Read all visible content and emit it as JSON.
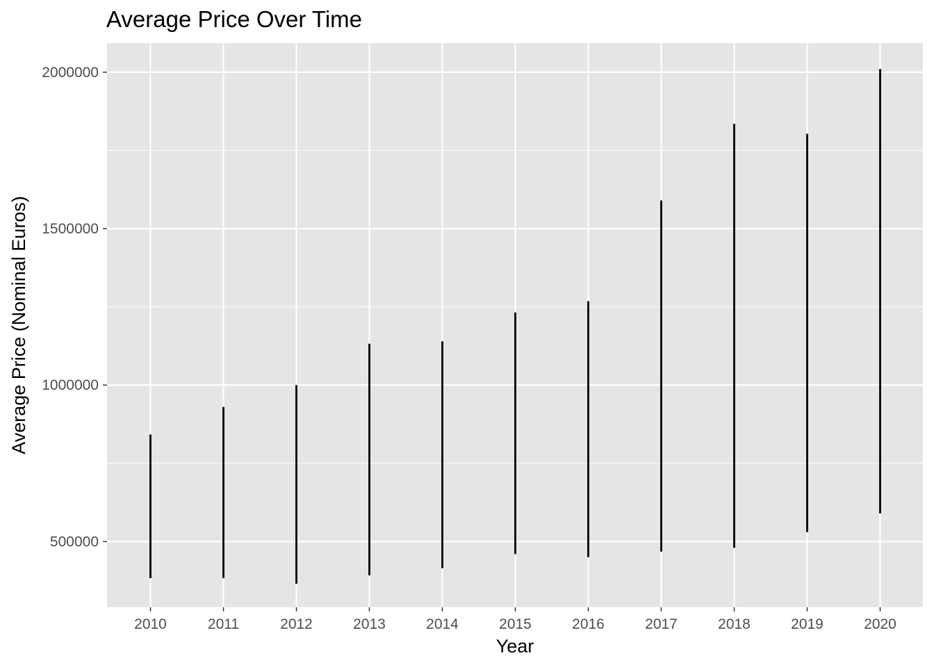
{
  "chart_data": {
    "type": "line",
    "title": "Average Price Over Time",
    "xlabel": "Year",
    "ylabel": "Average Price (Nominal Euros)",
    "x": [
      "2010",
      "2011",
      "2012",
      "2013",
      "2014",
      "2015",
      "2016",
      "2017",
      "2018",
      "2019",
      "2020"
    ],
    "series": [
      {
        "range_low": [
          383000,
          383000,
          365000,
          392000,
          415000,
          460000,
          450000,
          468000,
          480000,
          530000,
          590000
        ],
        "range_high": [
          842000,
          930000,
          1000000,
          1132000,
          1140000,
          1232000,
          1268000,
          1590000,
          1835000,
          1803000,
          2010000
        ]
      }
    ],
    "y_ticks": [
      "500000",
      "1000000",
      "1500000",
      "2000000"
    ],
    "ylim": [
      290000,
      2093000
    ],
    "grid": true,
    "background_color": "#e5e5e5",
    "gridline_color": "#ffffff",
    "mark_color": "#000000"
  }
}
